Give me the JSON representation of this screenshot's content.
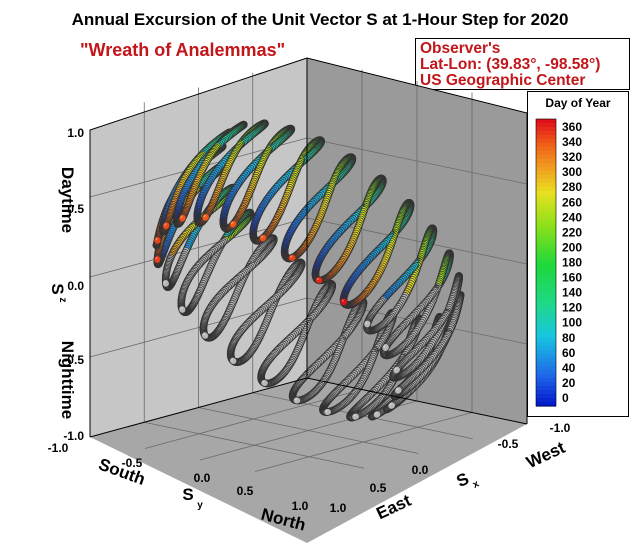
{
  "title": "Annual Excursion of the Unit Vector S at 1-Hour Step for 2020",
  "subtitle": "\"Wreath of Analemmas\"",
  "observer": {
    "line1": "Observer's",
    "line2": "Lat-Lon: (39.83°, -98.58°)",
    "line3": "US Geographic Center"
  },
  "chart_data": {
    "type": "3d-tube-curves",
    "title": "Annual Excursion of the Unit Vector S at 1-Hour Step for 2020",
    "subtitle": "\"Wreath of Analemmas\"",
    "curves": 24,
    "observer_lat_deg": 39.83,
    "observer_lon_deg": -98.58,
    "axes": {
      "z": {
        "range": [
          -1.0,
          1.0
        ],
        "ticks": [
          "1.0",
          "0.5",
          "0.0",
          "-0.5",
          "-1.0"
        ],
        "label": "S",
        "label_sub": "z",
        "upper_label": "Daytime",
        "lower_label": "Nighttime"
      },
      "y": {
        "range": [
          -1.0,
          1.0
        ],
        "ticks": [
          "-1.0",
          "-0.5",
          "0.0",
          "0.5",
          "1.0"
        ],
        "label": "S",
        "label_sub": "y",
        "neg_label": "South",
        "pos_label": "North"
      },
      "x": {
        "range": [
          -1.0,
          1.0
        ],
        "ticks": [
          "1.0",
          "0.5",
          "0.0",
          "-0.5",
          "-1.0"
        ],
        "label": "S",
        "label_sub": "x",
        "neg_label": "West",
        "pos_label": "East"
      }
    },
    "colorbar": {
      "title": "Day of Year",
      "min": 0,
      "max": 360,
      "ticks": [
        "360",
        "340",
        "320",
        "300",
        "280",
        "260",
        "240",
        "220",
        "200",
        "180",
        "160",
        "140",
        "120",
        "100",
        "80",
        "60",
        "40",
        "20",
        "0"
      ],
      "placement": "right",
      "below_horizon_color": "#b8b8b8"
    },
    "colors": {
      "title_red": "#c2161b",
      "floor": "#a7a7a7",
      "back_wall": "#c6c6c6",
      "side_wall": "#9a9a9a"
    }
  }
}
